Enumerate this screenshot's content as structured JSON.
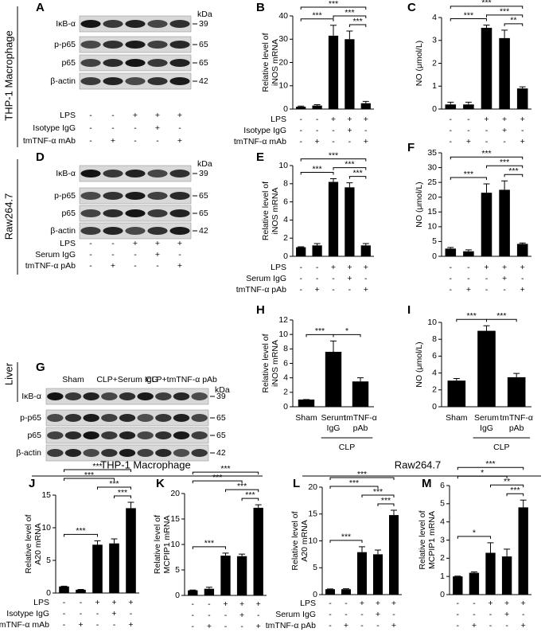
{
  "figure": {
    "side_labels": [
      "THP-1 Macrophage",
      "Raw264.7",
      "Liver"
    ],
    "headers": [
      "THP-1 Macrophage",
      "Raw264.7"
    ]
  },
  "blots": [
    {
      "letter": "A",
      "proteins": [
        "IκB-α",
        "p-p65",
        "p65",
        "β-actin"
      ],
      "kda_label": "kDa",
      "kda": [
        39,
        65,
        65,
        42
      ],
      "conditions": [
        {
          "name": "LPS",
          "signs": [
            "-",
            "-",
            "+",
            "+",
            "+"
          ]
        },
        {
          "name": "Isotype IgG",
          "signs": [
            "-",
            "-",
            "-",
            "+",
            "-"
          ]
        },
        {
          "name": "tmTNF-α mAb",
          "signs": [
            "-",
            "+",
            "-",
            "-",
            "+"
          ]
        }
      ]
    },
    {
      "letter": "D",
      "proteins": [
        "IκB-α",
        "p-p65",
        "p65",
        "β-actin"
      ],
      "kda_label": "kDa",
      "kda": [
        39,
        65,
        65,
        42
      ],
      "conditions": [
        {
          "name": "LPS",
          "signs": [
            "-",
            "-",
            "+",
            "+",
            "+"
          ]
        },
        {
          "name": "Serum IgG",
          "signs": [
            "-",
            "-",
            "-",
            "+",
            "-"
          ]
        },
        {
          "name": "tmTNF-α pAb",
          "signs": [
            "-",
            "+",
            "-",
            "-",
            "+"
          ]
        }
      ]
    },
    {
      "letter": "G",
      "proteins": [
        "IκB-α",
        "p-p65",
        "p65",
        "β-actin"
      ],
      "kda_label": "kDa",
      "kda": [
        39,
        65,
        65,
        42
      ],
      "groups": [
        "Sham",
        "CLP+Serum IgG",
        "CLP+tmTNF-α pAb"
      ]
    }
  ],
  "chart_data": [
    {
      "type": "bar",
      "letter": "B",
      "ylabel": [
        "Relative level of",
        "iNOS mRNA"
      ],
      "values": [
        1,
        1.5,
        31.5,
        30,
        2.5
      ],
      "errors": [
        0.3,
        0.4,
        4.5,
        3.5,
        0.8
      ],
      "ylim": [
        0,
        40
      ],
      "yticks": [
        0,
        10,
        20,
        30,
        40
      ],
      "conditions": [
        {
          "name": "LPS",
          "signs": [
            "-",
            "-",
            "+",
            "+",
            "+"
          ]
        },
        {
          "name": "Isotype IgG",
          "signs": [
            "-",
            "-",
            "-",
            "+",
            "-"
          ]
        },
        {
          "name": "tmTNF-α mAb",
          "signs": [
            "-",
            "+",
            "-",
            "-",
            "+"
          ]
        }
      ],
      "comparisons": [
        {
          "groups": [
            3,
            4
          ],
          "label": "***"
        },
        {
          "groups": [
            0,
            2
          ],
          "label": "***"
        },
        {
          "groups": [
            2,
            4
          ],
          "label": "***"
        },
        {
          "groups": [
            0,
            4
          ],
          "label": "***"
        }
      ]
    },
    {
      "type": "bar",
      "letter": "C",
      "ylabel": [
        "NO (μmol/L)"
      ],
      "values": [
        0.2,
        0.2,
        3.55,
        3.1,
        0.9
      ],
      "errors": [
        0.1,
        0.1,
        0.12,
        0.35,
        0.07
      ],
      "ylim": [
        0,
        4
      ],
      "yticks": [
        0,
        1,
        2,
        3,
        4
      ],
      "conditions": [
        {
          "signs": [
            "-",
            "-",
            "+",
            "+",
            "+"
          ]
        },
        {
          "signs": [
            "-",
            "-",
            "-",
            "+",
            "-"
          ]
        },
        {
          "signs": [
            "-",
            "+",
            "-",
            "-",
            "+"
          ]
        }
      ],
      "comparisons": [
        {
          "groups": [
            3,
            4
          ],
          "label": "**"
        },
        {
          "groups": [
            0,
            2
          ],
          "label": "***"
        },
        {
          "groups": [
            2,
            4
          ],
          "label": "***"
        },
        {
          "groups": [
            0,
            4
          ],
          "label": "***"
        }
      ]
    },
    {
      "type": "bar",
      "letter": "E",
      "ylabel": [
        "Relative level of",
        "iNOS mRNA"
      ],
      "values": [
        1,
        1.2,
        8.2,
        7.6,
        1.2
      ],
      "errors": [
        0.05,
        0.2,
        0.35,
        0.5,
        0.2
      ],
      "ylim": [
        0,
        10
      ],
      "yticks": [
        0,
        2,
        4,
        6,
        8,
        10
      ],
      "conditions": [
        {
          "name": "LPS",
          "signs": [
            "-",
            "-",
            "+",
            "+",
            "+"
          ]
        },
        {
          "name": "Serum IgG",
          "signs": [
            "-",
            "-",
            "-",
            "+",
            "-"
          ]
        },
        {
          "name": "tmTNF-α pAb",
          "signs": [
            "-",
            "+",
            "-",
            "-",
            "+"
          ]
        }
      ],
      "comparisons": [
        {
          "groups": [
            3,
            4
          ],
          "label": "***"
        },
        {
          "groups": [
            0,
            2
          ],
          "label": "***"
        },
        {
          "groups": [
            2,
            4
          ],
          "label": "***"
        },
        {
          "groups": [
            0,
            4
          ],
          "label": "***"
        }
      ]
    },
    {
      "type": "bar",
      "letter": "F",
      "ylabel": [
        "NO (μmol/L)"
      ],
      "values": [
        2.6,
        1.7,
        21.5,
        22.5,
        4.2
      ],
      "errors": [
        0.4,
        0.5,
        3,
        3,
        0.3
      ],
      "ylim": [
        0,
        35
      ],
      "yticks": [
        0,
        5,
        10,
        15,
        20,
        25,
        30,
        35
      ],
      "conditions": [
        {
          "signs": [
            "-",
            "-",
            "+",
            "+",
            "+"
          ]
        },
        {
          "signs": [
            "-",
            "-",
            "-",
            "+",
            "-"
          ]
        },
        {
          "signs": [
            "-",
            "+",
            "-",
            "-",
            "+"
          ]
        }
      ],
      "comparisons": [
        {
          "groups": [
            3,
            4
          ],
          "label": "***"
        },
        {
          "groups": [
            0,
            2
          ],
          "label": "***"
        },
        {
          "groups": [
            2,
            4
          ],
          "label": "***"
        },
        {
          "groups": [
            0,
            4
          ],
          "label": "***"
        }
      ]
    },
    {
      "type": "bar",
      "letter": "H",
      "ylabel": [
        "Relative level of",
        "iNOS mRNA"
      ],
      "categories": [
        [
          "Sham"
        ],
        [
          "Serum",
          "IgG"
        ],
        [
          "tmTNF-α",
          "pAb"
        ]
      ],
      "group_label": "CLP",
      "values": [
        1,
        7.6,
        3.5
      ],
      "errors": [
        0,
        1.5,
        0.5
      ],
      "ylim": [
        0,
        12
      ],
      "yticks": [
        0,
        2,
        4,
        6,
        8,
        10,
        12
      ],
      "comparisons": [
        {
          "groups": [
            0,
            1
          ],
          "label": "***"
        },
        {
          "groups": [
            1,
            2
          ],
          "label": "*"
        }
      ]
    },
    {
      "type": "bar",
      "letter": "I",
      "ylabel": [
        "NO (μmol/L)"
      ],
      "categories": [
        [
          "Sham"
        ],
        [
          "Serum",
          "IgG"
        ],
        [
          "tmTNF-α",
          "pAb"
        ]
      ],
      "group_label": "CLP",
      "values": [
        3.1,
        9,
        3.5
      ],
      "errors": [
        0.25,
        0.6,
        0.45
      ],
      "ylim": [
        0,
        10
      ],
      "yticks": [
        0,
        2,
        4,
        6,
        8,
        10
      ],
      "comparisons": [
        {
          "groups": [
            0,
            1
          ],
          "label": "***"
        },
        {
          "groups": [
            1,
            2
          ],
          "label": "***"
        }
      ]
    },
    {
      "type": "bar",
      "letter": "J",
      "ylabel": [
        "Relative level of",
        "A20 mRNA"
      ],
      "values": [
        1,
        0.5,
        7.4,
        7.6,
        13
      ],
      "errors": [
        0.05,
        0.05,
        0.6,
        0.7,
        0.9
      ],
      "ylim": [
        0,
        15
      ],
      "yticks": [
        0,
        5,
        10,
        15
      ],
      "conditions": [
        {
          "name": "LPS",
          "signs": [
            "-",
            "-",
            "+",
            "+",
            "+"
          ]
        },
        {
          "name": "Isotype IgG",
          "signs": [
            "-",
            "-",
            "-",
            "+",
            "-"
          ]
        },
        {
          "name": "tmTNF-α mAb",
          "signs": [
            "-",
            "+",
            "-",
            "-",
            "+"
          ]
        }
      ],
      "comparisons": [
        {
          "groups": [
            3,
            4
          ],
          "label": "***"
        },
        {
          "groups": [
            0,
            2
          ],
          "label": "***"
        },
        {
          "groups": [
            2,
            4
          ],
          "label": "***"
        },
        {
          "groups": [
            0,
            3
          ],
          "label": "***"
        },
        {
          "groups": [
            0,
            4
          ],
          "label": "***"
        }
      ]
    },
    {
      "type": "bar",
      "letter": "K",
      "ylabel": [
        "Relative level of",
        "MCPIP1 mRNA"
      ],
      "values": [
        1,
        1.3,
        7.8,
        7.7,
        17.2
      ],
      "errors": [
        0.05,
        0.3,
        0.5,
        0.4,
        0.6
      ],
      "ylim": [
        0,
        20
      ],
      "yticks": [
        0,
        5,
        10,
        15,
        20
      ],
      "conditions": [
        {
          "signs": [
            "-",
            "-",
            "+",
            "+",
            "+"
          ]
        },
        {
          "signs": [
            "-",
            "-",
            "-",
            "+",
            "-"
          ]
        },
        {
          "signs": [
            "-",
            "+",
            "-",
            "-",
            "+"
          ]
        }
      ],
      "comparisons": [
        {
          "groups": [
            3,
            4
          ],
          "label": "***"
        },
        {
          "groups": [
            0,
            2
          ],
          "label": "***"
        },
        {
          "groups": [
            2,
            4
          ],
          "label": "***"
        },
        {
          "groups": [
            0,
            3
          ],
          "label": "***"
        },
        {
          "groups": [
            0,
            4
          ],
          "label": "***"
        }
      ]
    },
    {
      "type": "bar",
      "letter": "L",
      "ylabel": [
        "Relative level of",
        "A20 mRNA"
      ],
      "values": [
        1,
        1,
        7.9,
        7.5,
        14.8
      ],
      "errors": [
        0.05,
        0.1,
        1,
        0.8,
        0.9
      ],
      "ylim": [
        0,
        20
      ],
      "yticks": [
        0,
        5,
        10,
        15,
        20
      ],
      "conditions": [
        {
          "name": "LPS",
          "signs": [
            "-",
            "-",
            "+",
            "+",
            "+"
          ]
        },
        {
          "name": "Serum IgG",
          "signs": [
            "-",
            "-",
            "-",
            "+",
            "-"
          ]
        },
        {
          "name": "tmTNF-α pAb",
          "signs": [
            "-",
            "+",
            "-",
            "-",
            "+"
          ]
        }
      ],
      "comparisons": [
        {
          "groups": [
            3,
            4
          ],
          "label": "***"
        },
        {
          "groups": [
            0,
            2
          ],
          "label": "***"
        },
        {
          "groups": [
            2,
            4
          ],
          "label": "***"
        },
        {
          "groups": [
            0,
            3
          ],
          "label": "***"
        },
        {
          "groups": [
            0,
            4
          ],
          "label": "***"
        }
      ]
    },
    {
      "type": "bar",
      "letter": "M",
      "ylabel": [
        "Relative level of",
        "MCPIP1 mRNA"
      ],
      "values": [
        1,
        1.2,
        2.3,
        2.1,
        4.8
      ],
      "errors": [
        0.02,
        0.05,
        0.55,
        0.4,
        0.4
      ],
      "ylim": [
        0,
        6
      ],
      "yticks": [
        0,
        1,
        2,
        3,
        4,
        5,
        6
      ],
      "conditions": [
        {
          "signs": [
            "-",
            "-",
            "+",
            "+",
            "+"
          ]
        },
        {
          "signs": [
            "-",
            "-",
            "-",
            "+",
            "-"
          ]
        },
        {
          "signs": [
            "-",
            "+",
            "-",
            "-",
            "+"
          ]
        }
      ],
      "comparisons": [
        {
          "groups": [
            3,
            4
          ],
          "label": "***"
        },
        {
          "groups": [
            0,
            2
          ],
          "label": "*"
        },
        {
          "groups": [
            2,
            4
          ],
          "label": "**"
        },
        {
          "groups": [
            0,
            3
          ],
          "label": "*"
        },
        {
          "groups": [
            0,
            4
          ],
          "label": "***"
        }
      ]
    }
  ]
}
